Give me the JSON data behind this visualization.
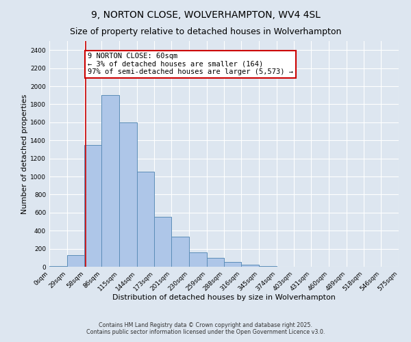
{
  "title": "9, NORTON CLOSE, WOLVERHAMPTON, WV4 4SL",
  "subtitle": "Size of property relative to detached houses in Wolverhampton",
  "xlabel": "Distribution of detached houses by size in Wolverhampton",
  "ylabel": "Number of detached properties",
  "bin_edges": [
    0,
    29,
    58,
    86,
    115,
    144,
    173,
    201,
    230,
    259,
    288,
    316,
    345,
    374,
    403,
    431,
    460,
    489,
    518,
    546,
    575
  ],
  "bar_heights": [
    10,
    130,
    1350,
    1900,
    1600,
    1050,
    550,
    335,
    160,
    100,
    55,
    20,
    5,
    2,
    1,
    0,
    0,
    0,
    1,
    0
  ],
  "bar_color": "#aec6e8",
  "bar_edge_color": "#5b8db8",
  "bar_linewidth": 0.7,
  "red_line_x": 60,
  "red_line_color": "#cc0000",
  "annotation_text": "9 NORTON CLOSE: 60sqm\n← 3% of detached houses are smaller (164)\n97% of semi-detached houses are larger (5,573) →",
  "annotation_fontsize": 7.5,
  "annotation_box_color": "#ffffff",
  "annotation_box_edge_color": "#cc0000",
  "ylim": [
    0,
    2500
  ],
  "yticks": [
    0,
    200,
    400,
    600,
    800,
    1000,
    1200,
    1400,
    1600,
    1800,
    2000,
    2200,
    2400
  ],
  "background_color": "#dde6f0",
  "plot_background_color": "#dde6f0",
  "grid_color": "#ffffff",
  "title_fontsize": 10,
  "subtitle_fontsize": 9,
  "xlabel_fontsize": 8,
  "ylabel_fontsize": 8,
  "tick_fontsize": 6.5,
  "footer_line1": "Contains HM Land Registry data © Crown copyright and database right 2025.",
  "footer_line2": "Contains public sector information licensed under the Open Government Licence v3.0.",
  "footer_fontsize": 5.8
}
